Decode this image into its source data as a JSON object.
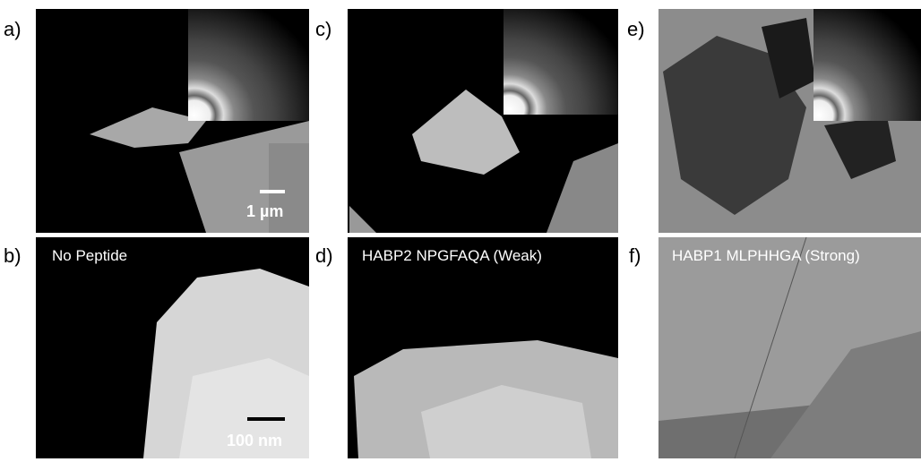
{
  "panels": [
    {
      "label": "a)",
      "scale_bar": "1 µm"
    },
    {
      "label": "b)",
      "caption": "No Peptide",
      "scale_bar": "100 nm"
    },
    {
      "label": "c)"
    },
    {
      "label": "d)",
      "caption": "HABP2 NPGFAQA (Weak)"
    },
    {
      "label": "e)"
    },
    {
      "label": "f)",
      "caption": "HABP1 MLPHHGA (Strong)"
    }
  ]
}
